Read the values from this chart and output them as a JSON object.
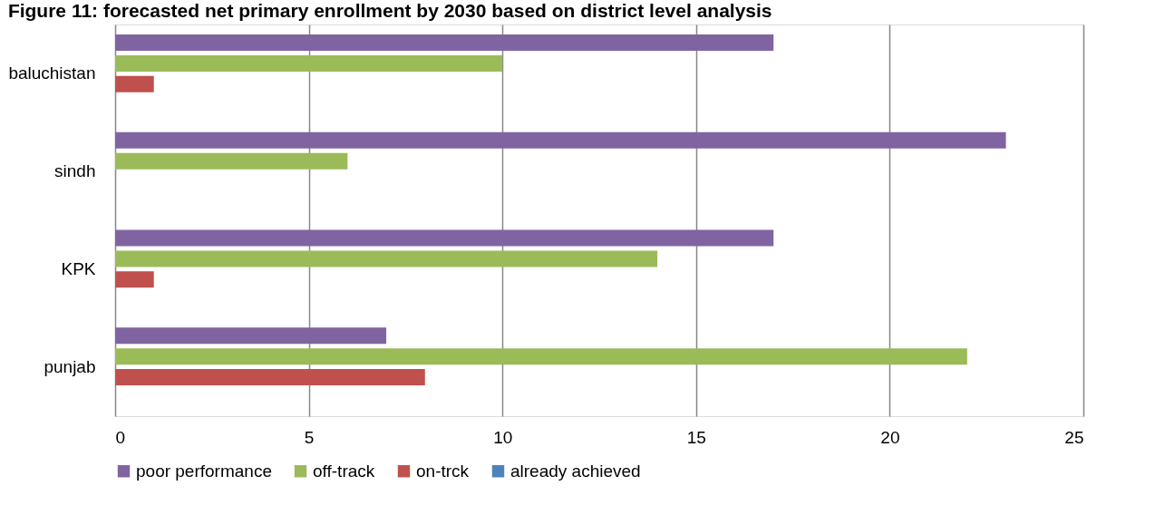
{
  "chart_data": {
    "type": "bar",
    "orientation": "horizontal",
    "title": "Figure 11: forecasted net primary enrollment by 2030 based on district level analysis",
    "categories": [
      "baluchistan",
      "sindh",
      "KPK",
      "punjab"
    ],
    "series": [
      {
        "name": "poor performance",
        "color": "#8064a2",
        "values": [
          17,
          23,
          17,
          7
        ]
      },
      {
        "name": "off-track",
        "color": "#9bbb59",
        "values": [
          10,
          6,
          14,
          22
        ]
      },
      {
        "name": "on-trck",
        "color": "#c0504d",
        "values": [
          1,
          0,
          1,
          8
        ]
      },
      {
        "name": "already achieved",
        "color": "#4f81bd",
        "values": [
          0,
          0,
          0,
          0
        ]
      }
    ],
    "xlim": [
      0,
      25
    ],
    "xticks": [
      0,
      5,
      10,
      15,
      20,
      25
    ],
    "grid": "x",
    "legend": "bottom"
  }
}
